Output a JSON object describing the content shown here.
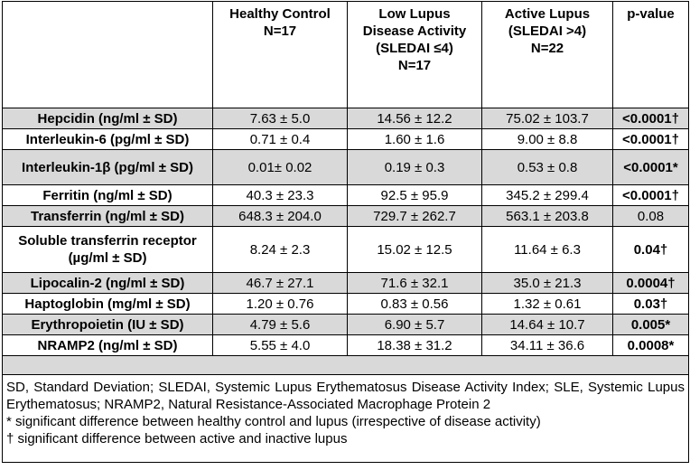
{
  "table": {
    "header": [
      [],
      [
        "Healthy Control",
        "N=17"
      ],
      [
        "Low Lupus",
        "Disease Activity",
        "(SLEDAI ≤4)",
        "N=17"
      ],
      [
        "Active Lupus",
        "(SLEDAI >4)",
        "N=22"
      ],
      [
        "p-value"
      ]
    ],
    "rows": [
      [
        "Hepcidin (ng/ml ± SD)",
        "7.63 ± 5.0",
        "14.56 ± 12.2",
        "75.02 ± 103.7",
        "<0.0001†"
      ],
      [
        "Interleukin-6 (pg/ml ± SD)",
        "0.71 ± 0.4",
        "1.60 ± 1.6",
        "9.00 ± 8.8",
        "<0.0001†"
      ],
      [
        "Interleukin-1β (pg/ml ± SD)",
        "0.01± 0.02",
        "0.19 ± 0.3",
        "0.53 ± 0.8",
        "<0.0001*"
      ],
      [
        "Ferritin (ng/ml ± SD)",
        "40.3 ± 23.3",
        "92.5 ± 95.9",
        "345.2 ± 299.4",
        "<0.0001†"
      ],
      [
        "Transferrin (ng/ml ± SD)",
        "648.3 ± 204.0",
        "729.7 ± 262.7",
        "563.1 ± 203.8",
        "0.08"
      ],
      [
        "Soluble transferrin receptor (µg/ml ± SD)",
        "8.24 ± 2.3",
        "15.02 ± 12.5",
        "11.64 ± 6.3",
        "0.04†"
      ],
      [
        "Lipocalin-2 (ng/ml ± SD)",
        "46.7 ± 27.1",
        "71.6 ± 32.1",
        "35.0 ± 21.3",
        "0.0004†"
      ],
      [
        "Haptoglobin (mg/ml ± SD)",
        "1.20 ± 0.76",
        "0.83 ± 0.56",
        "1.32 ± 0.61",
        "0.03†"
      ],
      [
        "Erythropoietin (IU ± SD)",
        "4.79 ± 5.6",
        "6.90 ± 5.7",
        "14.64 ± 10.7",
        "0.005*"
      ],
      [
        "NRAMP2 (ng/ml ± SD)",
        "5.55 ± 4.0",
        "18.38 ± 31.2",
        "34.11 ± 36.6",
        "0.0008*"
      ]
    ],
    "footnotes": [
      "SD, Standard Deviation; SLEDAI, Systemic Lupus Erythematosus Disease Activity Index; SLE, Systemic Lupus Erythematosus; NRAMP2, Natural Resistance-Associated Macrophage Protein 2",
      "* significant difference between healthy control and lupus (irrespective of disease activity)",
      "† significant difference between active and inactive lupus"
    ]
  }
}
